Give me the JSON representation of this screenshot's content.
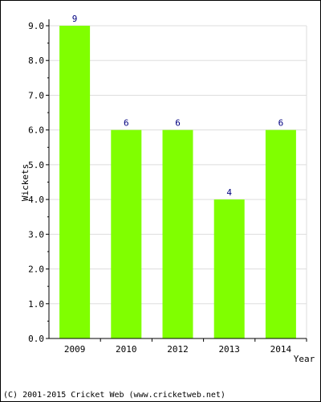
{
  "chart_data": {
    "type": "bar",
    "categories": [
      "2009",
      "2010",
      "2012",
      "2013",
      "2014"
    ],
    "values": [
      9,
      6,
      6,
      4,
      6
    ],
    "value_labels": [
      "9",
      "6",
      "6",
      "4",
      "6"
    ],
    "title": "",
    "xlabel": "Year",
    "ylabel": "Wickets",
    "ylim": [
      0,
      9.0
    ],
    "yticks": [
      "0.0",
      "1.0",
      "2.0",
      "3.0",
      "4.0",
      "5.0",
      "6.0",
      "7.0",
      "8.0",
      "9.0"
    ],
    "grid": true,
    "bar_color": "#80ff00",
    "value_label_color": "#000080"
  },
  "footer": {
    "credit": "(C) 2001-2015 Cricket Web (www.cricketweb.net)"
  }
}
